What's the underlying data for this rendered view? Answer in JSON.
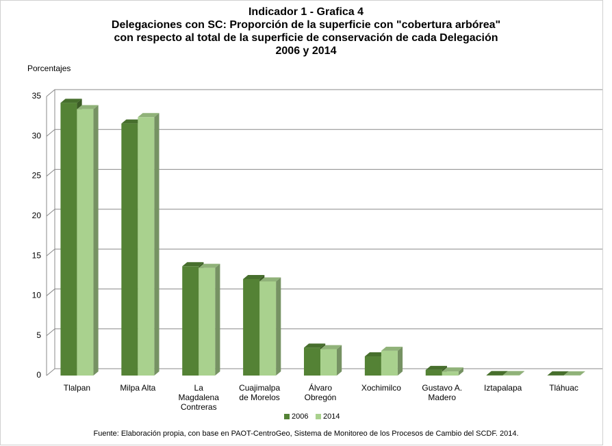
{
  "chart_data": {
    "type": "bar3d",
    "title": "Indicador 1 - Grafica 4",
    "subtitle": "Delegaciones con SC: Proporción de la superficie con \"cobertura arbórea\"\ncon respecto al total de la superficie de conservación de cada Delegación\n2006 y 2014",
    "y_label": "Porcentajes",
    "categories": [
      "Tlalpan",
      "Milpa Alta",
      "La\nMagdalena\nContreras",
      "Cuajimalpa\nde Morelos",
      "Álvaro\nObregón",
      "Xochimilco",
      "Gustavo A.\nMadero",
      "Iztapalapa",
      "Tláhuac"
    ],
    "series": [
      {
        "name": "2006",
        "color": "#548235",
        "values": [
          34.2,
          31.6,
          13.7,
          12.1,
          3.5,
          2.4,
          0.7,
          0.05,
          0.02
        ]
      },
      {
        "name": "2014",
        "color": "#a9d18e",
        "values": [
          33.4,
          32.4,
          13.5,
          11.8,
          3.3,
          3.1,
          0.5,
          0.05,
          0.02
        ]
      }
    ],
    "ylim": [
      0,
      35
    ],
    "yticks": [
      0,
      5,
      10,
      15,
      20,
      25,
      30,
      35
    ],
    "grid": true,
    "legend": "bottom",
    "source": "Fuente: Elaboración propia, con base en PAOT-CentroGeo, Sistema de Monitoreo de los Procesos de Cambio del SCDF. 2014."
  }
}
